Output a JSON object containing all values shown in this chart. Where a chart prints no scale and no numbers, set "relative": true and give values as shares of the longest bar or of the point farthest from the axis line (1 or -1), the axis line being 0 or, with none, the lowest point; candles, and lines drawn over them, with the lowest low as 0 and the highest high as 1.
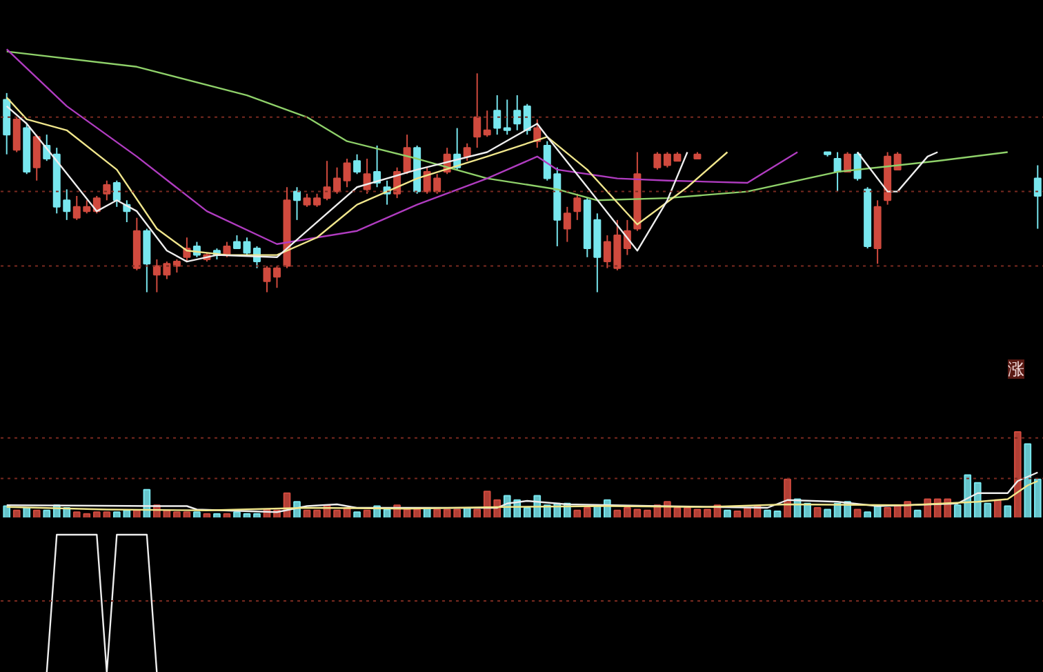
{
  "chart_data": [
    {
      "type": "candlestick",
      "relative": true,
      "ref_lines": [
        {
          "axis": "y",
          "value": 0.8,
          "color": "#7a2a20",
          "line_style": "dotted"
        },
        {
          "axis": "y",
          "value": 0.46,
          "color": "#7a2a20",
          "line_style": "dotted"
        },
        {
          "axis": "y",
          "value": 0.12,
          "color": "#7a2a20",
          "line_style": "dotted"
        }
      ],
      "categories": [
        null,
        null,
        null,
        null,
        null,
        null,
        null,
        null,
        null,
        null,
        null,
        null,
        null,
        null,
        null,
        null,
        null,
        null,
        null,
        null,
        null,
        null,
        null,
        null,
        null,
        null,
        null,
        null,
        null,
        null,
        null,
        null,
        null,
        null,
        null,
        null,
        null,
        null,
        null,
        null,
        null,
        null,
        null,
        null,
        null,
        null,
        null,
        null,
        null,
        null,
        null,
        null,
        null,
        null,
        null,
        null,
        null,
        null,
        null,
        null,
        null,
        null,
        null,
        null,
        null,
        null,
        null,
        null,
        null,
        null,
        null,
        null,
        null,
        null,
        null,
        null,
        null,
        null,
        null,
        null,
        null,
        null,
        null,
        null,
        null,
        null,
        null,
        null,
        null,
        null,
        null,
        null,
        null,
        null,
        null,
        null,
        null,
        null,
        null,
        null,
        null,
        null,
        null,
        null
      ],
      "ohlc": [
        [
          0.88,
          0.91,
          0.63,
          0.72
        ],
        [
          0.65,
          0.8,
          0.64,
          0.79
        ],
        [
          0.75,
          0.77,
          0.54,
          0.55
        ],
        [
          0.57,
          0.72,
          0.51,
          0.71
        ],
        [
          0.67,
          0.72,
          0.6,
          0.61
        ],
        [
          0.63,
          0.66,
          0.36,
          0.39
        ],
        [
          0.42,
          0.47,
          0.33,
          0.37
        ],
        [
          0.34,
          0.44,
          0.33,
          0.39
        ],
        [
          0.37,
          0.42,
          0.36,
          0.39
        ],
        [
          0.37,
          0.44,
          0.36,
          0.43
        ],
        [
          0.45,
          0.51,
          0.42,
          0.49
        ],
        [
          0.5,
          0.51,
          0.39,
          0.42
        ],
        [
          0.4,
          0.42,
          0.32,
          0.37
        ],
        [
          0.11,
          0.34,
          0.1,
          0.28
        ],
        [
          0.28,
          0.29,
          0.0,
          0.13
        ],
        [
          0.08,
          0.15,
          0.0,
          0.12
        ],
        [
          0.08,
          0.14,
          0.06,
          0.13
        ],
        [
          0.12,
          0.15,
          0.09,
          0.14
        ],
        [
          0.16,
          0.25,
          0.14,
          0.2
        ],
        [
          0.21,
          0.23,
          0.16,
          0.17
        ],
        [
          0.15,
          0.18,
          0.14,
          0.17
        ],
        [
          0.19,
          0.2,
          0.15,
          0.17
        ],
        [
          0.17,
          0.23,
          0.16,
          0.21
        ],
        [
          0.23,
          0.26,
          0.2,
          0.2
        ],
        [
          0.23,
          0.25,
          0.17,
          0.18
        ],
        [
          0.2,
          0.21,
          0.11,
          0.14
        ],
        [
          0.05,
          0.12,
          0.0,
          0.11
        ],
        [
          0.07,
          0.12,
          0.02,
          0.11
        ],
        [
          0.12,
          0.48,
          0.11,
          0.42
        ],
        [
          0.46,
          0.48,
          0.33,
          0.42
        ],
        [
          0.4,
          0.45,
          0.39,
          0.43
        ],
        [
          0.4,
          0.45,
          0.39,
          0.43
        ],
        [
          0.43,
          0.6,
          0.42,
          0.48
        ],
        [
          0.46,
          0.57,
          0.45,
          0.52
        ],
        [
          0.51,
          0.61,
          0.48,
          0.59
        ],
        [
          0.6,
          0.63,
          0.54,
          0.55
        ],
        [
          0.47,
          0.61,
          0.45,
          0.54
        ],
        [
          0.55,
          0.67,
          0.48,
          0.5
        ],
        [
          0.48,
          0.51,
          0.4,
          0.45
        ],
        [
          0.45,
          0.57,
          0.43,
          0.55
        ],
        [
          0.55,
          0.72,
          0.54,
          0.66
        ],
        [
          0.66,
          0.67,
          0.45,
          0.46
        ],
        [
          0.46,
          0.57,
          0.45,
          0.55
        ],
        [
          0.46,
          0.54,
          0.45,
          0.52
        ],
        [
          0.55,
          0.66,
          0.54,
          0.63
        ],
        [
          0.63,
          0.75,
          0.56,
          0.57
        ],
        [
          0.62,
          0.68,
          0.6,
          0.66
        ],
        [
          0.71,
          1.0,
          0.66,
          0.8
        ],
        [
          0.72,
          0.83,
          0.71,
          0.74
        ],
        [
          0.83,
          0.9,
          0.72,
          0.75
        ],
        [
          0.75,
          0.88,
          0.72,
          0.74
        ],
        [
          0.83,
          0.9,
          0.74,
          0.77
        ],
        [
          0.85,
          0.86,
          0.72,
          0.74
        ],
        [
          0.69,
          0.79,
          0.66,
          0.75
        ],
        [
          0.67,
          0.69,
          0.51,
          0.52
        ],
        [
          0.54,
          0.57,
          0.21,
          0.33
        ],
        [
          0.29,
          0.39,
          0.23,
          0.36
        ],
        [
          0.37,
          0.45,
          0.33,
          0.43
        ],
        [
          0.42,
          0.43,
          0.16,
          0.2
        ],
        [
          0.33,
          0.36,
          0.0,
          0.16
        ],
        [
          0.14,
          0.26,
          0.11,
          0.23
        ],
        [
          0.11,
          0.33,
          0.1,
          0.26
        ],
        [
          0.2,
          0.33,
          0.17,
          0.28
        ],
        [
          0.29,
          0.64,
          0.28,
          0.54
        ],
        null,
        [
          0.57,
          0.64,
          0.56,
          0.63
        ],
        [
          0.58,
          0.64,
          0.57,
          0.63
        ],
        [
          0.6,
          0.64,
          0.6,
          0.63
        ],
        null,
        [
          0.61,
          0.64,
          0.61,
          0.63
        ],
        null,
        null,
        null,
        null,
        null,
        null,
        null,
        null,
        null,
        null,
        null,
        null,
        [
          0.64,
          0.64,
          0.62,
          0.63
        ],
        [
          0.61,
          0.64,
          0.46,
          0.55
        ],
        [
          0.55,
          0.64,
          0.55,
          0.63
        ],
        [
          0.63,
          0.64,
          0.51,
          0.52
        ],
        [
          0.47,
          0.48,
          0.2,
          0.21
        ],
        [
          0.2,
          0.42,
          0.13,
          0.39
        ],
        [
          0.42,
          0.64,
          0.4,
          0.62
        ],
        [
          0.56,
          0.64,
          0.56,
          0.63
        ],
        null,
        null,
        null,
        null,
        null,
        null,
        null,
        null,
        null,
        null,
        null,
        null,
        null,
        [
          0.52,
          0.58,
          0.29,
          0.44
        ]
      ],
      "colors": [
        "#78e6ee",
        "#d04a3e",
        "#78e6ee",
        "#d04a3e",
        "#78e6ee",
        "#78e6ee",
        "#78e6ee",
        "#d04a3e",
        "#d04a3e",
        "#d04a3e",
        "#d04a3e",
        "#78e6ee",
        "#78e6ee",
        "#d04a3e",
        "#78e6ee",
        "#d04a3e",
        "#d04a3e",
        "#d04a3e",
        "#d04a3e",
        "#78e6ee",
        "#d04a3e",
        "#78e6ee",
        "#d04a3e",
        "#78e6ee",
        "#78e6ee",
        "#78e6ee",
        "#d04a3e",
        "#d04a3e",
        "#d04a3e",
        "#78e6ee",
        "#d04a3e",
        "#d04a3e",
        "#d04a3e",
        "#d04a3e",
        "#d04a3e",
        "#78e6ee",
        "#d04a3e",
        "#78e6ee",
        "#78e6ee",
        "#d04a3e",
        "#d04a3e",
        "#78e6ee",
        "#d04a3e",
        "#d04a3e",
        "#d04a3e",
        "#78e6ee",
        "#d04a3e",
        "#d04a3e",
        "#d04a3e",
        "#78e6ee",
        "#78e6ee",
        "#78e6ee",
        "#78e6ee",
        "#d04a3e",
        "#78e6ee",
        "#78e6ee",
        "#d04a3e",
        "#d04a3e",
        "#78e6ee",
        "#78e6ee",
        "#d04a3e",
        "#d04a3e",
        "#d04a3e",
        "#d04a3e",
        null,
        "#d04a3e",
        "#d04a3e",
        "#d04a3e",
        null,
        "#d04a3e",
        null,
        null,
        null,
        null,
        null,
        null,
        null,
        null,
        null,
        null,
        null,
        null,
        "#78e6ee",
        "#78e6ee",
        "#d04a3e",
        "#78e6ee",
        "#78e6ee",
        "#d04a3e",
        "#d04a3e",
        "#d04a3e",
        null,
        null,
        null,
        null,
        null,
        null,
        null,
        null,
        null,
        null,
        null,
        null,
        null,
        "#78e6ee"
      ],
      "series": [
        {
          "type": "line",
          "color": "#8fd16a",
          "values": [
            1.1,
            null,
            null,
            null,
            null,
            null,
            null,
            null,
            null,
            null,
            null,
            null,
            null,
            1.03,
            null,
            null,
            null,
            null,
            null,
            null,
            null,
            null,
            null,
            null,
            0.9,
            null,
            null,
            null,
            null,
            null,
            0.8,
            null,
            null,
            null,
            0.69,
            null,
            null,
            null,
            null,
            null,
            null,
            0.61,
            null,
            null,
            null,
            null,
            null,
            null,
            0.52,
            null,
            null,
            null,
            null,
            null,
            null,
            0.47,
            null,
            null,
            null,
            0.42,
            null,
            null,
            null,
            null,
            null,
            null,
            0.43,
            null,
            null,
            null,
            null,
            null,
            null,
            null,
            0.46,
            null,
            null,
            null,
            null,
            null,
            null,
            null,
            null,
            0.55,
            null,
            null,
            null,
            null,
            null,
            null,
            null,
            null,
            null,
            0.6,
            null,
            null,
            null,
            null,
            null,
            null,
            0.64,
            null,
            null,
            null
          ]
        },
        {
          "type": "line",
          "color": "#b03cc0",
          "values": [
            1.11,
            null,
            null,
            null,
            null,
            null,
            0.85,
            null,
            null,
            null,
            null,
            null,
            null,
            0.62,
            null,
            null,
            null,
            null,
            null,
            null,
            0.37,
            null,
            null,
            null,
            null,
            null,
            null,
            0.22,
            null,
            null,
            null,
            null,
            null,
            null,
            null,
            0.28,
            null,
            null,
            null,
            null,
            null,
            0.4,
            null,
            null,
            null,
            null,
            null,
            null,
            0.52,
            null,
            null,
            null,
            null,
            0.62,
            null,
            0.56,
            null,
            null,
            null,
            null,
            null,
            0.52,
            null,
            null,
            null,
            null,
            0.51,
            null,
            null,
            null,
            null,
            null,
            null,
            null,
            0.5,
            null,
            null,
            null,
            null,
            0.64,
            null,
            null,
            null,
            null,
            null,
            null,
            null,
            null,
            null,
            null,
            null,
            null,
            null,
            null,
            null,
            null,
            null,
            null,
            null,
            null,
            null,
            null,
            null,
            null
          ]
        },
        {
          "type": "line",
          "color": "#f0e68c",
          "values": [
            0.89,
            null,
            0.79,
            null,
            null,
            null,
            0.74,
            null,
            null,
            null,
            null,
            0.56,
            null,
            null,
            null,
            0.29,
            null,
            null,
            0.19,
            null,
            null,
            null,
            0.17,
            null,
            null,
            null,
            null,
            0.17,
            null,
            null,
            null,
            0.25,
            null,
            null,
            null,
            0.4,
            null,
            null,
            null,
            null,
            null,
            0.52,
            null,
            null,
            null,
            null,
            null,
            null,
            0.62,
            null,
            null,
            null,
            null,
            null,
            0.71,
            null,
            null,
            null,
            0.56,
            null,
            null,
            null,
            null,
            0.31,
            null,
            null,
            null,
            null,
            0.48,
            null,
            null,
            null,
            0.64,
            null,
            null,
            null,
            null,
            null,
            null,
            null,
            null,
            null,
            null,
            null,
            null,
            null,
            null,
            null,
            null,
            null,
            null,
            null,
            null,
            null,
            null,
            null,
            null,
            null,
            null,
            null,
            null,
            null,
            null,
            null
          ]
        },
        {
          "type": "line",
          "color": "#eeeeee",
          "values": [
            0.85,
            null,
            0.77,
            null,
            null,
            0.6,
            null,
            null,
            null,
            0.37,
            null,
            0.42,
            null,
            0.37,
            null,
            null,
            0.19,
            null,
            0.14,
            null,
            null,
            0.17,
            null,
            null,
            null,
            null,
            null,
            0.16,
            null,
            null,
            0.28,
            null,
            null,
            null,
            null,
            0.48,
            null,
            null,
            null,
            null,
            null,
            0.56,
            null,
            null,
            null,
            null,
            null,
            null,
            0.64,
            null,
            null,
            null,
            null,
            0.77,
            0.71,
            null,
            null,
            null,
            0.48,
            null,
            null,
            null,
            null,
            0.19,
            null,
            null,
            0.42,
            null,
            0.64,
            null,
            null,
            null,
            null,
            null,
            null,
            null,
            null,
            null,
            null,
            null,
            null,
            null,
            null,
            null,
            null,
            null,
            null,
            null,
            null,
            null,
            null,
            null,
            null,
            null,
            null,
            null,
            null,
            null,
            null,
            null,
            null,
            null,
            null,
            null
          ]
        },
        {
          "type": "line",
          "color": "#eeeeee",
          "values": [
            null,
            null,
            null,
            null,
            null,
            null,
            null,
            null,
            null,
            null,
            null,
            null,
            null,
            null,
            null,
            null,
            null,
            null,
            null,
            null,
            null,
            null,
            null,
            null,
            null,
            null,
            null,
            null,
            null,
            null,
            null,
            null,
            null,
            null,
            null,
            null,
            null,
            null,
            null,
            null,
            null,
            null,
            null,
            null,
            null,
            null,
            null,
            null,
            null,
            null,
            null,
            null,
            null,
            null,
            null,
            null,
            null,
            null,
            null,
            null,
            null,
            null,
            null,
            null,
            null,
            null,
            null,
            null,
            null,
            null,
            null,
            null,
            null,
            null,
            null,
            null,
            null,
            null,
            null,
            null,
            null,
            null,
            null,
            null,
            null,
            0.64,
            null,
            null,
            0.46,
            0.46,
            null,
            null,
            0.62,
            0.64,
            null,
            null,
            null,
            null,
            null,
            null,
            null,
            null,
            null,
            null
          ]
        }
      ]
    },
    {
      "type": "bar",
      "relative": true,
      "annotations": [
        "涨"
      ],
      "ref_lines": [
        {
          "axis": "y",
          "value": 0.93,
          "color": "#7a2a20",
          "line_style": "dotted"
        },
        {
          "axis": "y",
          "value": 0.46,
          "color": "#7a2a20",
          "line_style": "dotted"
        }
      ],
      "categories": [
        null,
        null,
        null,
        null,
        null,
        null,
        null,
        null,
        null,
        null,
        null,
        null,
        null,
        null,
        null,
        null,
        null,
        null,
        null,
        null,
        null,
        null,
        null,
        null,
        null,
        null,
        null,
        null,
        null,
        null,
        null,
        null,
        null,
        null,
        null,
        null,
        null,
        null,
        null,
        null,
        null,
        null,
        null,
        null,
        null,
        null,
        null,
        null,
        null,
        null,
        null,
        null,
        null,
        null,
        null,
        null,
        null,
        null,
        null,
        null,
        null,
        null,
        null,
        null,
        null,
        null,
        null,
        null,
        null,
        null,
        null,
        null,
        null,
        null,
        null,
        null,
        null,
        null,
        null,
        null,
        null,
        null,
        null,
        null,
        null,
        null,
        null,
        null,
        null,
        null,
        null,
        null,
        null,
        null,
        null,
        null,
        null,
        null,
        null,
        null,
        null,
        null,
        null,
        null
      ],
      "values": [
        0.14,
        0.09,
        0.12,
        0.09,
        0.09,
        0.15,
        0.12,
        0.07,
        0.05,
        0.07,
        0.07,
        0.07,
        0.09,
        0.09,
        0.33,
        0.15,
        0.09,
        0.07,
        0.07,
        0.07,
        0.05,
        0.05,
        0.05,
        0.07,
        0.05,
        0.05,
        0.1,
        0.09,
        0.29,
        0.19,
        0.09,
        0.09,
        0.15,
        0.09,
        0.12,
        0.07,
        0.09,
        0.14,
        0.1,
        0.15,
        0.1,
        0.1,
        0.12,
        0.1,
        0.1,
        0.1,
        0.12,
        0.1,
        0.31,
        0.21,
        0.26,
        0.21,
        0.12,
        0.26,
        0.15,
        0.17,
        0.17,
        0.09,
        0.12,
        0.14,
        0.21,
        0.09,
        0.12,
        0.1,
        0.09,
        0.15,
        0.19,
        0.12,
        0.12,
        0.1,
        0.1,
        0.15,
        0.09,
        0.08,
        0.12,
        0.14,
        0.09,
        0.08,
        0.45,
        0.22,
        0.17,
        0.12,
        0.1,
        0.17,
        0.19,
        0.1,
        0.07,
        0.15,
        0.12,
        0.15,
        0.19,
        0.09,
        0.22,
        0.22,
        0.22,
        0.15,
        0.5,
        0.41,
        0.17,
        0.21,
        0.14,
        1.0,
        0.86,
        0.45
      ],
      "colors": [
        "#78e6ee",
        "#d04a3e",
        "#78e6ee",
        "#d04a3e",
        "#78e6ee",
        "#78e6ee",
        "#78e6ee",
        "#d04a3e",
        "#d04a3e",
        "#d04a3e",
        "#d04a3e",
        "#78e6ee",
        "#78e6ee",
        "#d04a3e",
        "#78e6ee",
        "#d04a3e",
        "#d04a3e",
        "#d04a3e",
        "#d04a3e",
        "#78e6ee",
        "#d04a3e",
        "#78e6ee",
        "#d04a3e",
        "#78e6ee",
        "#78e6ee",
        "#78e6ee",
        "#d04a3e",
        "#d04a3e",
        "#d04a3e",
        "#78e6ee",
        "#d04a3e",
        "#d04a3e",
        "#d04a3e",
        "#d04a3e",
        "#d04a3e",
        "#78e6ee",
        "#d04a3e",
        "#78e6ee",
        "#78e6ee",
        "#d04a3e",
        "#d04a3e",
        "#d04a3e",
        "#78e6ee",
        "#d04a3e",
        "#d04a3e",
        "#d04a3e",
        "#78e6ee",
        "#d04a3e",
        "#d04a3e",
        "#d04a3e",
        "#78e6ee",
        "#78e6ee",
        "#78e6ee",
        "#78e6ee",
        "#78e6ee",
        "#78e6ee",
        "#78e6ee",
        "#d04a3e",
        "#d04a3e",
        "#78e6ee",
        "#78e6ee",
        "#d04a3e",
        "#d04a3e",
        "#d04a3e",
        "#d04a3e",
        "#d04a3e",
        "#d04a3e",
        "#d04a3e",
        "#d04a3e",
        "#d04a3e",
        "#d04a3e",
        "#d04a3e",
        "#78e6ee",
        "#d04a3e",
        "#d04a3e",
        "#d04a3e",
        "#78e6ee",
        "#78e6ee",
        "#d04a3e",
        "#78e6ee",
        "#78e6ee",
        "#d04a3e",
        "#78e6ee",
        "#78e6ee",
        "#78e6ee",
        "#d04a3e",
        "#78e6ee",
        "#78e6ee",
        "#d04a3e",
        "#d04a3e",
        "#d04a3e",
        "#78e6ee",
        "#d04a3e",
        "#d04a3e",
        "#d04a3e",
        "#78e6ee",
        "#78e6ee",
        "#78e6ee",
        "#78e6ee",
        "#d04a3e",
        "#78e6ee",
        "#d04a3e",
        "#78e6ee",
        "#78e6ee"
      ],
      "series": [
        {
          "type": "line",
          "color": "#eeeeee",
          "values": [
            0.15,
            null,
            null,
            null,
            null,
            null,
            null,
            null,
            null,
            null,
            null,
            null,
            null,
            null,
            null,
            0.14,
            null,
            null,
            0.14,
            0.1,
            null,
            null,
            null,
            null,
            null,
            null,
            null,
            0.07,
            null,
            null,
            0.14,
            null,
            null,
            0.16,
            null,
            0.12,
            null,
            null,
            null,
            null,
            null,
            0.12,
            null,
            null,
            null,
            null,
            null,
            null,
            null,
            0.12,
            0.17,
            null,
            0.2,
            0.19,
            null,
            null,
            0.16,
            null,
            null,
            null,
            null,
            null,
            null,
            null,
            null,
            0.14,
            null,
            null,
            null,
            null,
            null,
            null,
            null,
            null,
            null,
            null,
            0.12,
            null,
            0.21,
            null,
            null,
            null,
            null,
            0.19,
            null,
            null,
            null,
            0.14,
            null,
            null,
            null,
            null,
            null,
            null,
            null,
            0.17,
            null,
            0.29,
            null,
            null,
            0.29,
            0.43,
            null,
            0.53
          ]
        },
        {
          "type": "line",
          "color": "#f0e68c",
          "values": [
            0.13,
            null,
            null,
            null,
            null,
            null,
            null,
            null,
            null,
            null,
            0.1,
            null,
            null,
            null,
            null,
            null,
            null,
            null,
            null,
            null,
            0.09,
            null,
            null,
            null,
            null,
            null,
            null,
            null,
            null,
            null,
            0.12,
            null,
            null,
            null,
            null,
            null,
            null,
            null,
            null,
            null,
            0.11,
            null,
            null,
            null,
            null,
            null,
            null,
            null,
            null,
            null,
            0.13,
            null,
            null,
            null,
            null,
            null,
            null,
            null,
            null,
            null,
            0.14,
            null,
            null,
            null,
            null,
            null,
            null,
            null,
            null,
            null,
            0.13,
            null,
            null,
            null,
            null,
            null,
            null,
            null,
            0.16,
            null,
            null,
            null,
            null,
            null,
            null,
            null,
            null,
            null,
            null,
            null,
            0.15,
            null,
            null,
            null,
            null,
            null,
            null,
            0.19,
            null,
            null,
            0.22,
            null,
            0.38,
            0.43
          ]
        }
      ]
    },
    {
      "type": "line",
      "relative": true,
      "ref_lines": [
        {
          "axis": "y",
          "value": 0.52,
          "color": "#7a2a20",
          "line_style": "dotted"
        }
      ],
      "categories": [
        null,
        null,
        null,
        null,
        null,
        null,
        null,
        null,
        null,
        null,
        null,
        null,
        null,
        null,
        null,
        null,
        null,
        null,
        null,
        null,
        null,
        null,
        null,
        null,
        null,
        null,
        null,
        null,
        null,
        null,
        null,
        null,
        null,
        null,
        null,
        null,
        null,
        null,
        null,
        null,
        null,
        null,
        null,
        null,
        null,
        null,
        null,
        null,
        null,
        null,
        null,
        null,
        null,
        null,
        null,
        null,
        null,
        null,
        null,
        null,
        null,
        null,
        null,
        null,
        null,
        null,
        null,
        null,
        null,
        null,
        null,
        null,
        null,
        null,
        null,
        null,
        null,
        null,
        null,
        null,
        null,
        null,
        null,
        null,
        null,
        null,
        null,
        null,
        null,
        null,
        null,
        null,
        null,
        null,
        null,
        null,
        null,
        null,
        null,
        null,
        null,
        null,
        null,
        null
      ],
      "series": [
        {
          "color": "#eeeeee",
          "values": [
            null,
            null,
            null,
            null,
            0,
            1,
            null,
            null,
            null,
            1,
            0,
            1,
            null,
            null,
            1,
            0,
            null,
            null,
            null,
            null,
            null,
            null,
            null,
            null,
            null,
            null,
            null,
            null,
            null,
            null,
            null,
            null,
            null,
            null,
            null,
            null,
            null,
            null,
            null,
            null,
            null,
            null,
            null,
            null,
            null,
            null,
            null,
            null,
            null,
            null,
            null,
            null,
            null,
            null,
            null,
            null,
            null,
            null,
            null,
            null,
            null,
            null,
            null,
            null,
            null,
            null,
            null,
            null,
            null,
            null,
            null,
            null,
            null,
            null,
            null,
            null,
            null,
            null,
            null,
            null,
            null,
            null,
            null,
            null,
            null,
            null,
            null,
            null,
            null,
            null,
            null,
            null,
            null,
            null,
            null,
            null,
            null,
            null,
            null,
            null,
            null,
            null,
            null,
            null
          ]
        }
      ]
    }
  ]
}
